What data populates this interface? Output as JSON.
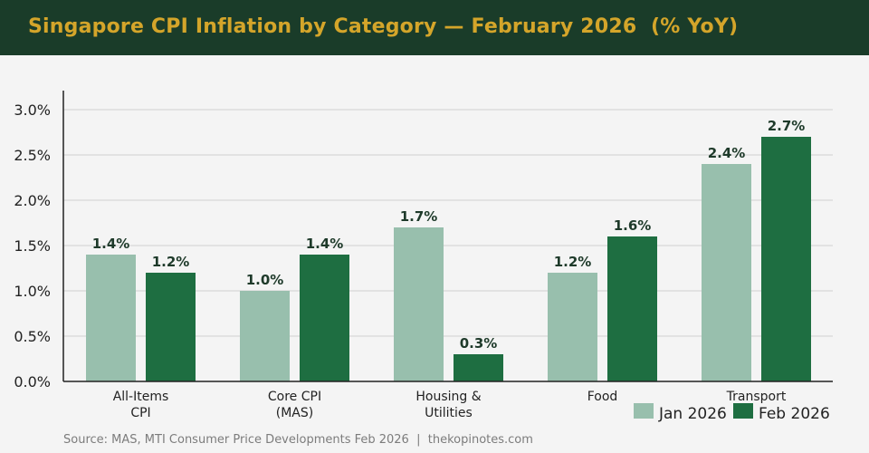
{
  "header": {
    "title": "Singapore CPI Inflation by Category — February 2026  (% YoY)"
  },
  "footer": {
    "source": "Source: MAS, MTI Consumer Price Developments Feb 2026  |  thekopinotes.com"
  },
  "colors": {
    "header_bg": "#1a3c29",
    "title": "#d4a52a",
    "jan_2026": "#98bfad",
    "feb_2026": "#1e6e41",
    "value_label": "#1e3a2a"
  },
  "chart_data": {
    "type": "bar",
    "title": "Singapore CPI Inflation by Category — February 2026  (% YoY)",
    "categories": [
      [
        "All-Items",
        "CPI"
      ],
      [
        "Core CPI",
        "(MAS)"
      ],
      [
        "Housing &",
        "Utilities"
      ],
      [
        "Food"
      ],
      [
        "Transport"
      ]
    ],
    "series": [
      {
        "name": "Jan 2026",
        "values": [
          1.4,
          1.0,
          1.7,
          1.2,
          2.4
        ],
        "labels": [
          "1.4%",
          "1.0%",
          "1.7%",
          "1.2%",
          "2.4%"
        ]
      },
      {
        "name": "Feb 2026",
        "values": [
          1.2,
          1.4,
          0.3,
          1.6,
          2.7
        ],
        "labels": [
          "1.2%",
          "1.4%",
          "0.3%",
          "1.6%",
          "2.7%"
        ]
      }
    ],
    "ylim": [
      0,
      3.2
    ],
    "yticks": [
      0,
      0.5,
      1.0,
      1.5,
      2.0,
      2.5,
      3.0
    ],
    "ytick_labels": [
      "0.0%",
      "0.5%",
      "1.0%",
      "1.5%",
      "2.0%",
      "2.5%",
      "3.0%"
    ],
    "xlabel": "",
    "ylabel": "",
    "grid": "horizontal",
    "legend": "bottom-right"
  }
}
